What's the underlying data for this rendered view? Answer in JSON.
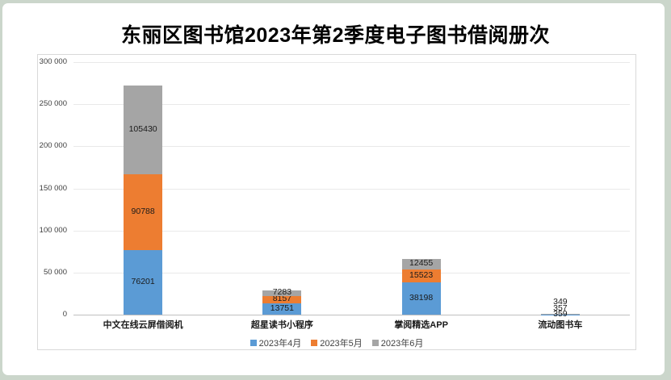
{
  "page": {
    "background_color": "#cbd6cb",
    "card_color": "#ffffff"
  },
  "chart_data": {
    "type": "bar",
    "stacked": true,
    "title": "东丽区图书馆2023年第2季度电子图书借阅册次",
    "categories": [
      "中文在线云屏借阅机",
      "超星读书小程序",
      "掌阅精选APP",
      "流动图书车"
    ],
    "series": [
      {
        "name": "2023年4月",
        "color": "#5B9BD5",
        "values": [
          76201,
          13751,
          38198,
          359
        ]
      },
      {
        "name": "2023年5月",
        "color": "#ED7D31",
        "values": [
          90788,
          8157,
          15523,
          357
        ]
      },
      {
        "name": "2023年6月",
        "color": "#A5A5A5",
        "values": [
          105430,
          7283,
          12455,
          349
        ]
      }
    ],
    "xlabel": "",
    "ylabel": "",
    "ylim": [
      0,
      300000
    ],
    "ytick_step": 50000,
    "ytick_labels": [
      "0",
      "50 000",
      "100 000",
      "150 000",
      "200 000",
      "250 000",
      "300 000"
    ],
    "grid": true,
    "data_labels": true,
    "legend_position": "bottom",
    "gridline_color": "#e9e9e9",
    "axis_line_color": "#bfbfbf"
  }
}
